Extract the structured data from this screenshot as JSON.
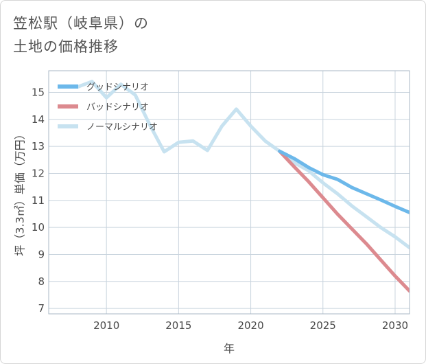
{
  "page": {
    "title_line1": "笠松駅（岐阜県）の",
    "title_line2": "土地の価格推移"
  },
  "chart_data": {
    "type": "line",
    "title": "笠松駅（岐阜県）の土地の価格推移",
    "xlabel": "年",
    "ylabel": "坪（3.3㎡）単価（万円）",
    "xlim": [
      2006,
      2031
    ],
    "ylim": [
      6.8,
      15.8
    ],
    "x_ticks": [
      2010,
      2015,
      2020,
      2025,
      2030
    ],
    "y_ticks": [
      7,
      8,
      9,
      10,
      11,
      12,
      13,
      14,
      15
    ],
    "grid": true,
    "legend_position": "top-left",
    "series": [
      {
        "name": "ノーマルシナリオ",
        "color": "#c7e2f0",
        "x": [
          2008,
          2009,
          2010,
          2011,
          2012,
          2013,
          2014,
          2015,
          2016,
          2017,
          2018,
          2019,
          2020,
          2021,
          2022,
          2023,
          2024,
          2025,
          2026,
          2027,
          2028,
          2029,
          2030,
          2031
        ],
        "values": [
          15.2,
          15.4,
          14.8,
          15.3,
          14.9,
          13.8,
          12.8,
          13.15,
          13.2,
          12.85,
          13.75,
          14.38,
          13.75,
          13.2,
          12.82,
          12.4,
          12.1,
          11.65,
          11.25,
          10.8,
          10.4,
          10.0,
          9.65,
          9.25
        ]
      },
      {
        "name": "バッドシナリオ",
        "color": "#dc8a8f",
        "x": [
          2022,
          2023,
          2024,
          2025,
          2026,
          2027,
          2028,
          2029,
          2030,
          2031
        ],
        "values": [
          12.82,
          12.25,
          11.7,
          11.1,
          10.5,
          9.95,
          9.4,
          8.8,
          8.2,
          7.65
        ]
      },
      {
        "name": "グッドシナリオ",
        "color": "#6cb8ea",
        "x": [
          2022,
          2023,
          2024,
          2025,
          2026,
          2027,
          2028,
          2029,
          2030,
          2031
        ],
        "values": [
          12.82,
          12.55,
          12.22,
          11.95,
          11.78,
          11.48,
          11.25,
          11.02,
          10.78,
          10.55
        ]
      }
    ],
    "legend": [
      "グッドシナリオ",
      "バッドシナリオ",
      "ノーマルシナリオ"
    ]
  }
}
